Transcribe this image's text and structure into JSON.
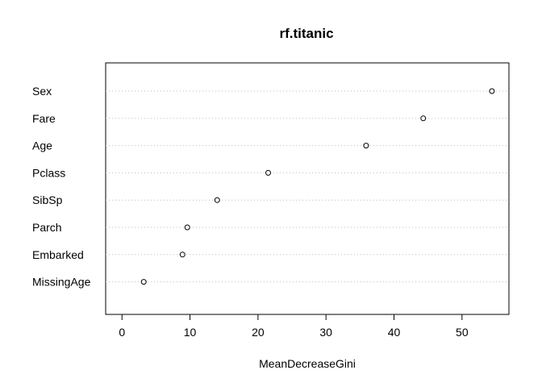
{
  "chart_data": {
    "type": "scatter",
    "title": "rf.titanic",
    "xlabel": "MeanDecreaseGini",
    "ylabel": "",
    "xlim": [
      -2.4,
      56.9
    ],
    "xticks": [
      0,
      10,
      20,
      30,
      40,
      50
    ],
    "grid": "dotted horizontal lines per variable",
    "categories": [
      "Sex",
      "Fare",
      "Age",
      "Pclass",
      "SibSp",
      "Parch",
      "Embarked",
      "MissingAge"
    ],
    "values": [
      54.4,
      44.3,
      35.9,
      21.5,
      14.0,
      9.6,
      8.9,
      3.2
    ],
    "colors": {
      "point_stroke": "#000000",
      "grid": "#bebebe",
      "axis": "#000000"
    }
  }
}
